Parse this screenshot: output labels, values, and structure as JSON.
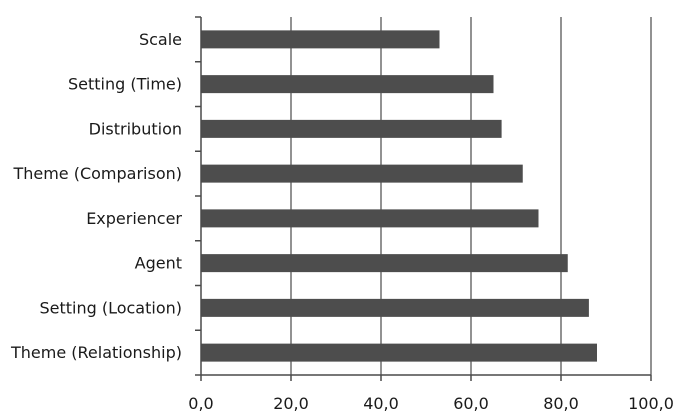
{
  "chart_data": {
    "type": "bar",
    "orientation": "horizontal",
    "categories": [
      "Scale",
      "Setting (Time)",
      "Distribution",
      "Theme (Comparison)",
      "Experiencer",
      "Agent",
      "Setting (Location)",
      "Theme (Relationship)"
    ],
    "values": [
      53.0,
      65.0,
      66.8,
      71.5,
      75.0,
      81.5,
      86.2,
      88.0
    ],
    "x_ticks": [
      "0,0",
      "20,0",
      "40,0",
      "60,0",
      "80,0",
      "100,0"
    ],
    "xlim": [
      0,
      100
    ],
    "title": "",
    "xlabel": "",
    "ylabel": "",
    "grid": "vertical",
    "legend": "none",
    "colors": {
      "bar": "#4d4d4d",
      "grid": "#4a4a4a",
      "axis": "#4a4a4a"
    }
  }
}
